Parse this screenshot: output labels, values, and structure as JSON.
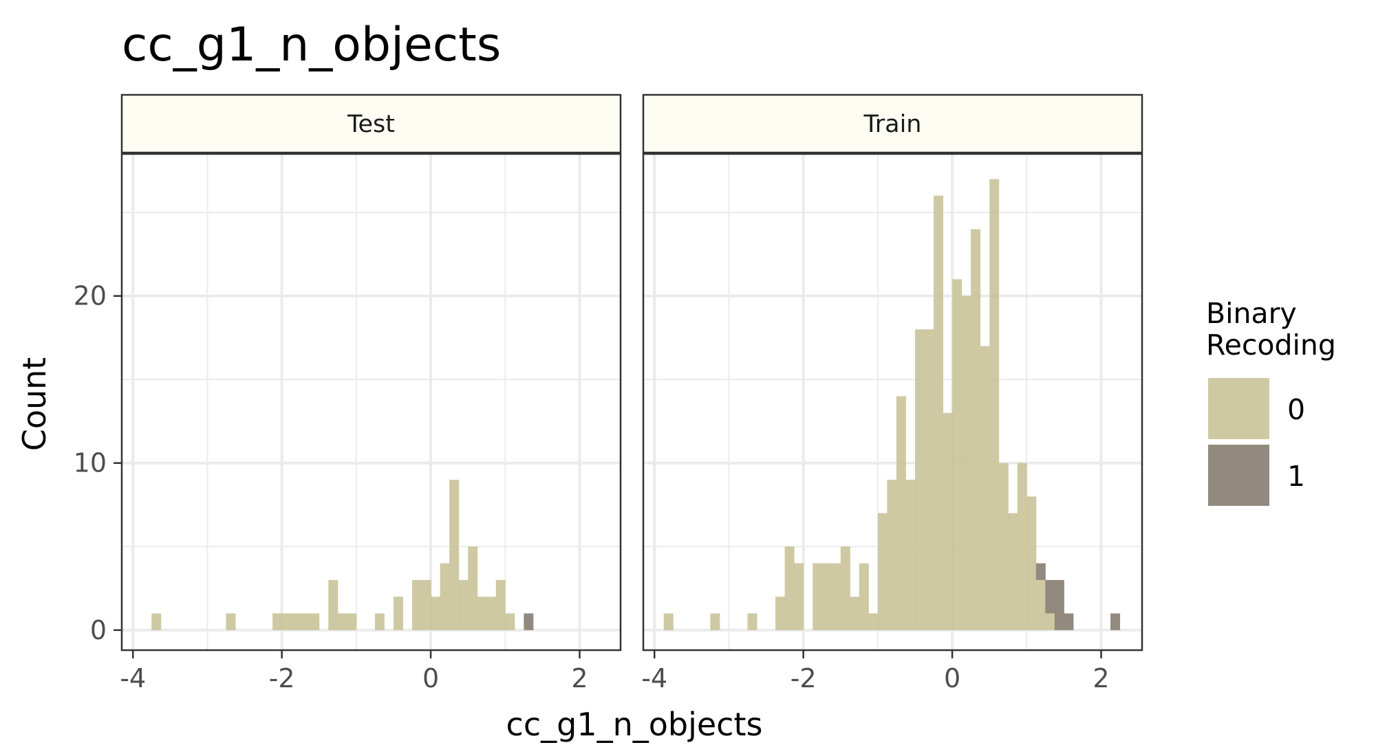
{
  "chart_data": {
    "type": "bar",
    "title": "cc_g1_n_objects",
    "xlabel": "cc_g1_n_objects",
    "ylabel": "Count",
    "x_ticks": [
      "-4",
      "-2",
      "0",
      "2"
    ],
    "y_ticks": [
      "0",
      "10",
      "20"
    ],
    "xlim": [
      -4.15,
      2.55
    ],
    "ylim": [
      -1.2,
      28.5
    ],
    "bin_width": 0.125,
    "grid": true,
    "legend": {
      "title_lines": [
        "Binary",
        "Recoding"
      ],
      "placement": "right",
      "entries": [
        {
          "label": "0",
          "color": "#c8c196"
        },
        {
          "label": "1",
          "color": "#847a6d"
        }
      ]
    },
    "panels": [
      {
        "name": "Test",
        "series": [
          {
            "name": "0",
            "color": "#c8c196",
            "bins": [
              [
                -3.75,
                1
              ],
              [
                -2.75,
                1
              ],
              [
                -2.125,
                1
              ],
              [
                -2.0,
                1
              ],
              [
                -1.875,
                1
              ],
              [
                -1.75,
                1
              ],
              [
                -1.625,
                1
              ],
              [
                -1.375,
                3
              ],
              [
                -1.25,
                1
              ],
              [
                -1.125,
                1
              ],
              [
                -0.75,
                1
              ],
              [
                -0.5,
                2
              ],
              [
                -0.25,
                3
              ],
              [
                -0.125,
                3
              ],
              [
                0.0,
                2
              ],
              [
                0.125,
                4
              ],
              [
                0.25,
                9
              ],
              [
                0.375,
                3
              ],
              [
                0.5,
                5
              ],
              [
                0.625,
                2
              ],
              [
                0.75,
                2
              ],
              [
                0.875,
                3
              ],
              [
                1.0,
                1
              ]
            ]
          },
          {
            "name": "1",
            "color": "#847a6d",
            "bins": [
              [
                1.25,
                1
              ]
            ]
          }
        ]
      },
      {
        "name": "Train",
        "series": [
          {
            "name": "0",
            "color": "#c8c196",
            "bins": [
              [
                -3.875,
                1
              ],
              [
                -3.25,
                1
              ],
              [
                -2.75,
                1
              ],
              [
                -2.375,
                2
              ],
              [
                -2.25,
                5
              ],
              [
                -2.125,
                4
              ],
              [
                -1.875,
                4
              ],
              [
                -1.75,
                4
              ],
              [
                -1.625,
                4
              ],
              [
                -1.5,
                5
              ],
              [
                -1.375,
                2
              ],
              [
                -1.25,
                4
              ],
              [
                -1.125,
                1
              ],
              [
                -1.0,
                7
              ],
              [
                -0.875,
                9
              ],
              [
                -0.75,
                14
              ],
              [
                -0.625,
                9
              ],
              [
                -0.5,
                18
              ],
              [
                -0.375,
                18
              ],
              [
                -0.25,
                26
              ],
              [
                -0.125,
                13
              ],
              [
                0.0,
                21
              ],
              [
                0.125,
                20
              ],
              [
                0.25,
                24
              ],
              [
                0.375,
                17
              ],
              [
                0.5,
                27
              ],
              [
                0.625,
                10
              ],
              [
                0.75,
                7
              ],
              [
                0.875,
                10
              ],
              [
                1.0,
                8
              ],
              [
                1.125,
                3
              ],
              [
                1.25,
                1
              ]
            ]
          },
          {
            "name": "1",
            "color": "#847a6d",
            "bins": [
              [
                1.125,
                1
              ],
              [
                1.25,
                2
              ],
              [
                1.375,
                3
              ],
              [
                1.5,
                1
              ],
              [
                2.125,
                1
              ]
            ]
          }
        ]
      }
    ]
  }
}
